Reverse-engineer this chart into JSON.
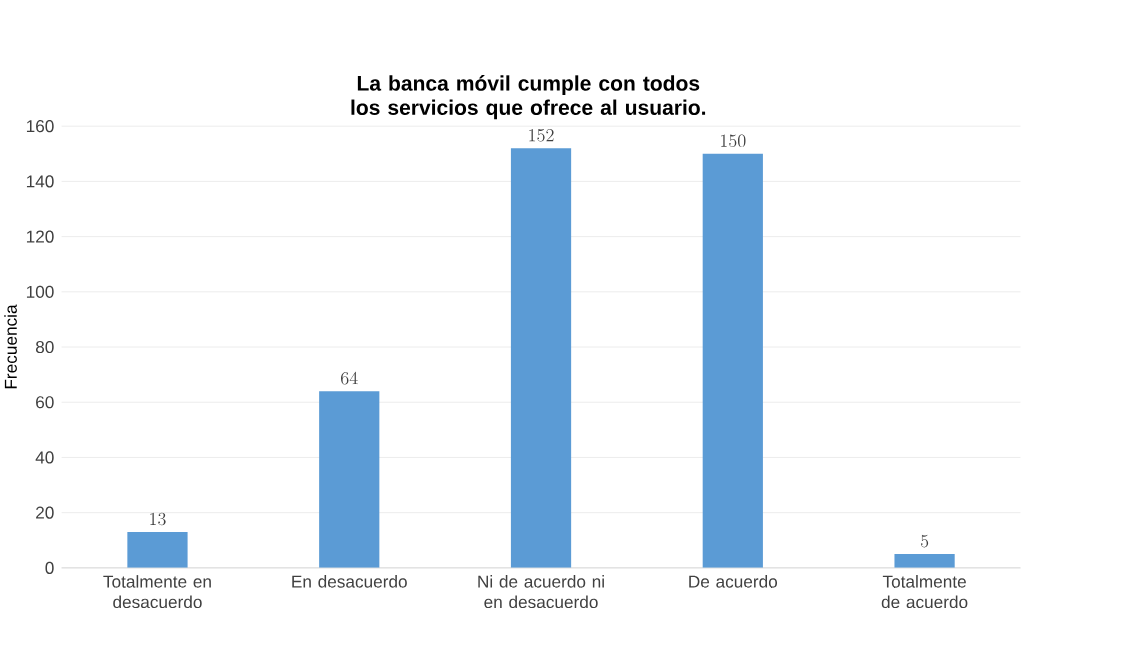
{
  "chart_data": {
    "type": "bar",
    "title": "La banca móvil cumple con todos los servicios que ofrece al usuario.",
    "ylabel": "Frecuencia",
    "categories": [
      "Totalmente en desacuerdo",
      "En desacuerdo",
      "Ni de acuerdo ni en desacuerdo",
      "De acuerdo",
      "Totalmente de acuerdo"
    ],
    "values": [
      13,
      64,
      152,
      150,
      5
    ],
    "color": "#5b9bd5",
    "ylim": [
      0,
      160
    ],
    "yticks": [
      0,
      20,
      40,
      60,
      80,
      100,
      120,
      140,
      160
    ],
    "grid": "y",
    "data_labels": true
  }
}
